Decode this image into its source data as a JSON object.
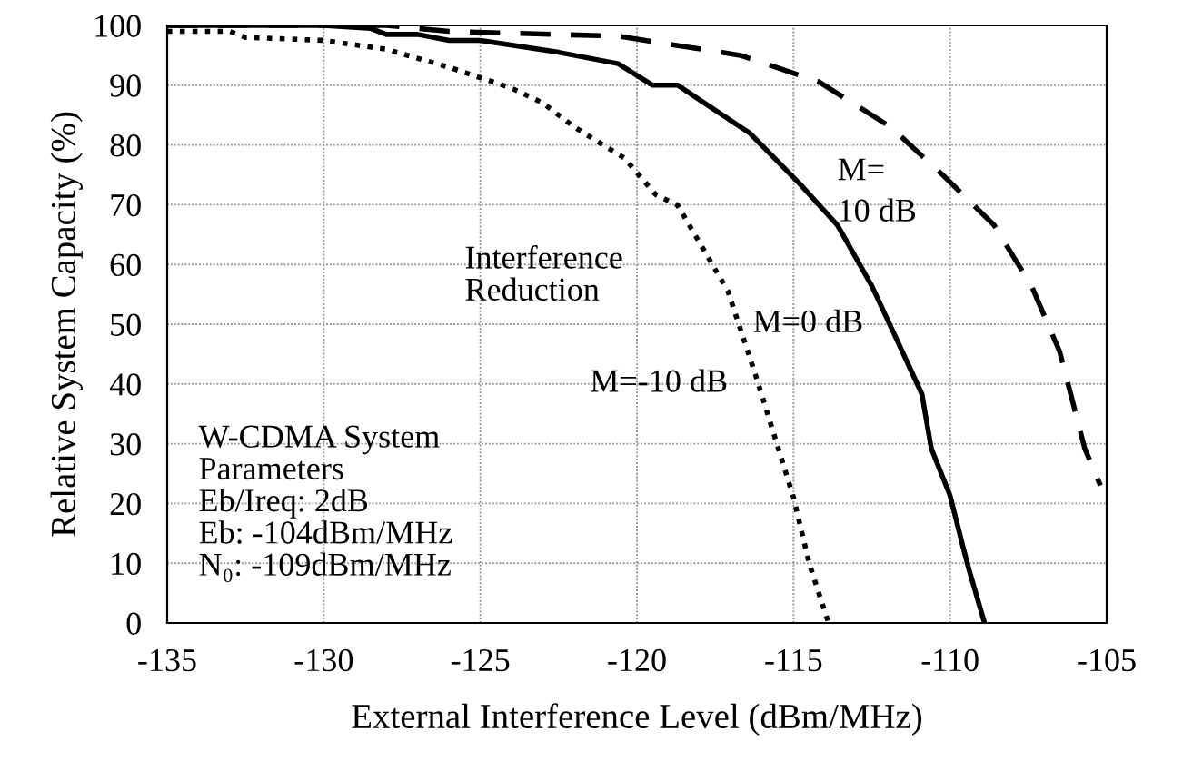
{
  "chart_data": {
    "type": "line",
    "xlabel": "External Interference Level (dBm/MHz)",
    "ylabel": "Relative System Capacity (%)",
    "xlim": [
      -135,
      -105
    ],
    "xticks": [
      -135,
      -130,
      -125,
      -120,
      -115,
      -110,
      -105
    ],
    "ylim": [
      0,
      100
    ],
    "yticks": [
      0,
      10,
      20,
      30,
      40,
      50,
      60,
      70,
      80,
      90,
      100
    ],
    "grid": true,
    "series": [
      {
        "name": "M=-10 dB",
        "color": "#000000",
        "line_style": "dotted",
        "x": [
          -135,
          -133,
          -132.5,
          -130,
          -128,
          -126,
          -124,
          -123,
          -122,
          -120.4,
          -119.4,
          -118.7,
          -117.1,
          -116.2,
          -115,
          -114.5,
          -113.9
        ],
        "values": [
          99,
          99,
          98,
          97.5,
          96,
          93,
          89.5,
          87,
          83,
          77.8,
          71.7,
          69.9,
          55.6,
          41.3,
          21,
          10,
          0.3
        ]
      },
      {
        "name": "M=0 dB",
        "color": "#000000",
        "line_style": "solid",
        "x": [
          -135,
          -130,
          -128.5,
          -128,
          -127,
          -126,
          -125,
          -122.5,
          -120.6,
          -119.5,
          -118.7,
          -116.4,
          -114.8,
          -113.6,
          -112.5,
          -111.7,
          -110.9,
          -110.6,
          -110,
          -109.6,
          -109.4,
          -108.9
        ],
        "values": [
          100,
          100,
          99.5,
          98.5,
          98.5,
          97.5,
          97.5,
          95.5,
          93.6,
          90,
          90,
          82,
          73.5,
          66.6,
          56.4,
          47.4,
          38.3,
          29.2,
          21.3,
          13,
          9,
          0
        ]
      },
      {
        "name": "M=\n10 dB",
        "color": "#000000",
        "line_style": "dashed",
        "x": [
          -135,
          -128,
          -126,
          -120.6,
          -116.7,
          -114.2,
          -111.9,
          -110.2,
          -108.6,
          -107.4,
          -106.5,
          -105.7,
          -105.2
        ],
        "values": [
          100,
          100,
          99,
          98.2,
          95,
          90.6,
          83,
          74.8,
          66.6,
          56.4,
          45.4,
          29.2,
          23
        ]
      }
    ],
    "annotations": [
      "Interference\nReduction",
      "W-CDMA System\nParameters\nEb/Ireq: 2dB\nEb: -104dBm/MHz\nN₀: -109dBm/MHz"
    ]
  }
}
